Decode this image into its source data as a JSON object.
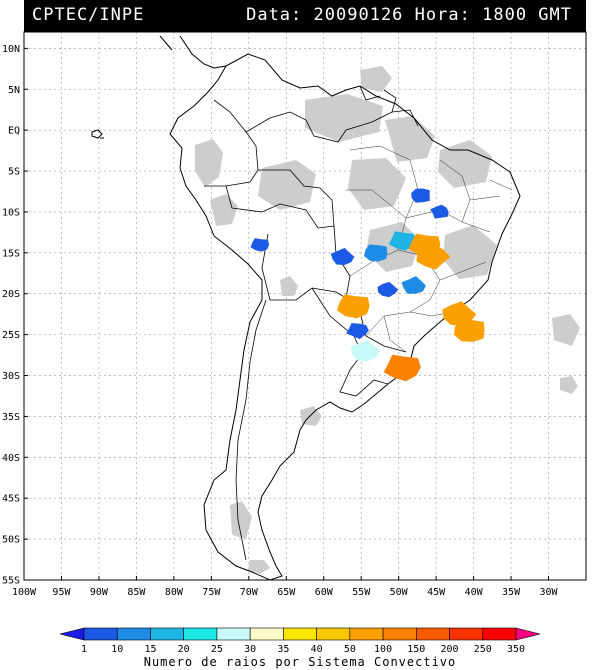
{
  "header": {
    "source": "CPTEC/INPE",
    "date_label": "Data:",
    "date_value": "20090126",
    "hour_label": "Hora:",
    "hour_value": "1800 GMT"
  },
  "map": {
    "lon_range": [
      -100,
      -25
    ],
    "lat_range": [
      -55,
      12
    ],
    "lat_ticks": [
      "10N",
      "5N",
      "EQ",
      "5S",
      "10S",
      "15S",
      "20S",
      "25S",
      "30S",
      "35S",
      "40S",
      "45S",
      "50S",
      "55S"
    ],
    "lon_ticks": [
      "100W",
      "95W",
      "90W",
      "85W",
      "80W",
      "75W",
      "70W",
      "65W",
      "60W",
      "55W",
      "50W",
      "45W",
      "40W",
      "35W",
      "30W"
    ],
    "grid": true,
    "cloud_color": "#c8c8c8",
    "cells": [
      {
        "lon": -68.5,
        "lat": -14.0,
        "count": 3
      },
      {
        "lon": -57.5,
        "lat": -15.5,
        "count": 8
      },
      {
        "lon": -53.0,
        "lat": -15.0,
        "count": 12
      },
      {
        "lon": -49.5,
        "lat": -13.5,
        "count": 18
      },
      {
        "lon": -46.5,
        "lat": -14.0,
        "count": 55
      },
      {
        "lon": -45.5,
        "lat": -15.5,
        "count": 60
      },
      {
        "lon": -47.0,
        "lat": -8.0,
        "count": 5
      },
      {
        "lon": -44.5,
        "lat": -10.0,
        "count": 3
      },
      {
        "lon": -51.5,
        "lat": -19.5,
        "count": 4
      },
      {
        "lon": -48.0,
        "lat": -19.0,
        "count": 10
      },
      {
        "lon": -42.0,
        "lat": -22.5,
        "count": 65
      },
      {
        "lon": -40.5,
        "lat": -24.5,
        "count": 70
      },
      {
        "lon": -56.0,
        "lat": -21.5,
        "count": 75
      },
      {
        "lon": -55.5,
        "lat": -24.5,
        "count": 6
      },
      {
        "lon": -54.5,
        "lat": -27.0,
        "count": 28
      },
      {
        "lon": -49.5,
        "lat": -29.0,
        "count": 140
      }
    ]
  },
  "legend": {
    "labels": [
      "1",
      "10",
      "15",
      "20",
      "25",
      "30",
      "35",
      "40",
      "50",
      "100",
      "150",
      "200",
      "250",
      "350"
    ],
    "colors": [
      "#1c1ce6",
      "#1c5ae6",
      "#1e8ce6",
      "#1eb4e6",
      "#1ee6e6",
      "#c8fafa",
      "#fafac8",
      "#fae600",
      "#fac800",
      "#faa000",
      "#fa8200",
      "#fa5a00",
      "#fa3200",
      "#fa0000",
      "#fa0080"
    ],
    "caption": "Numero de raios por Sistema Convectivo"
  }
}
